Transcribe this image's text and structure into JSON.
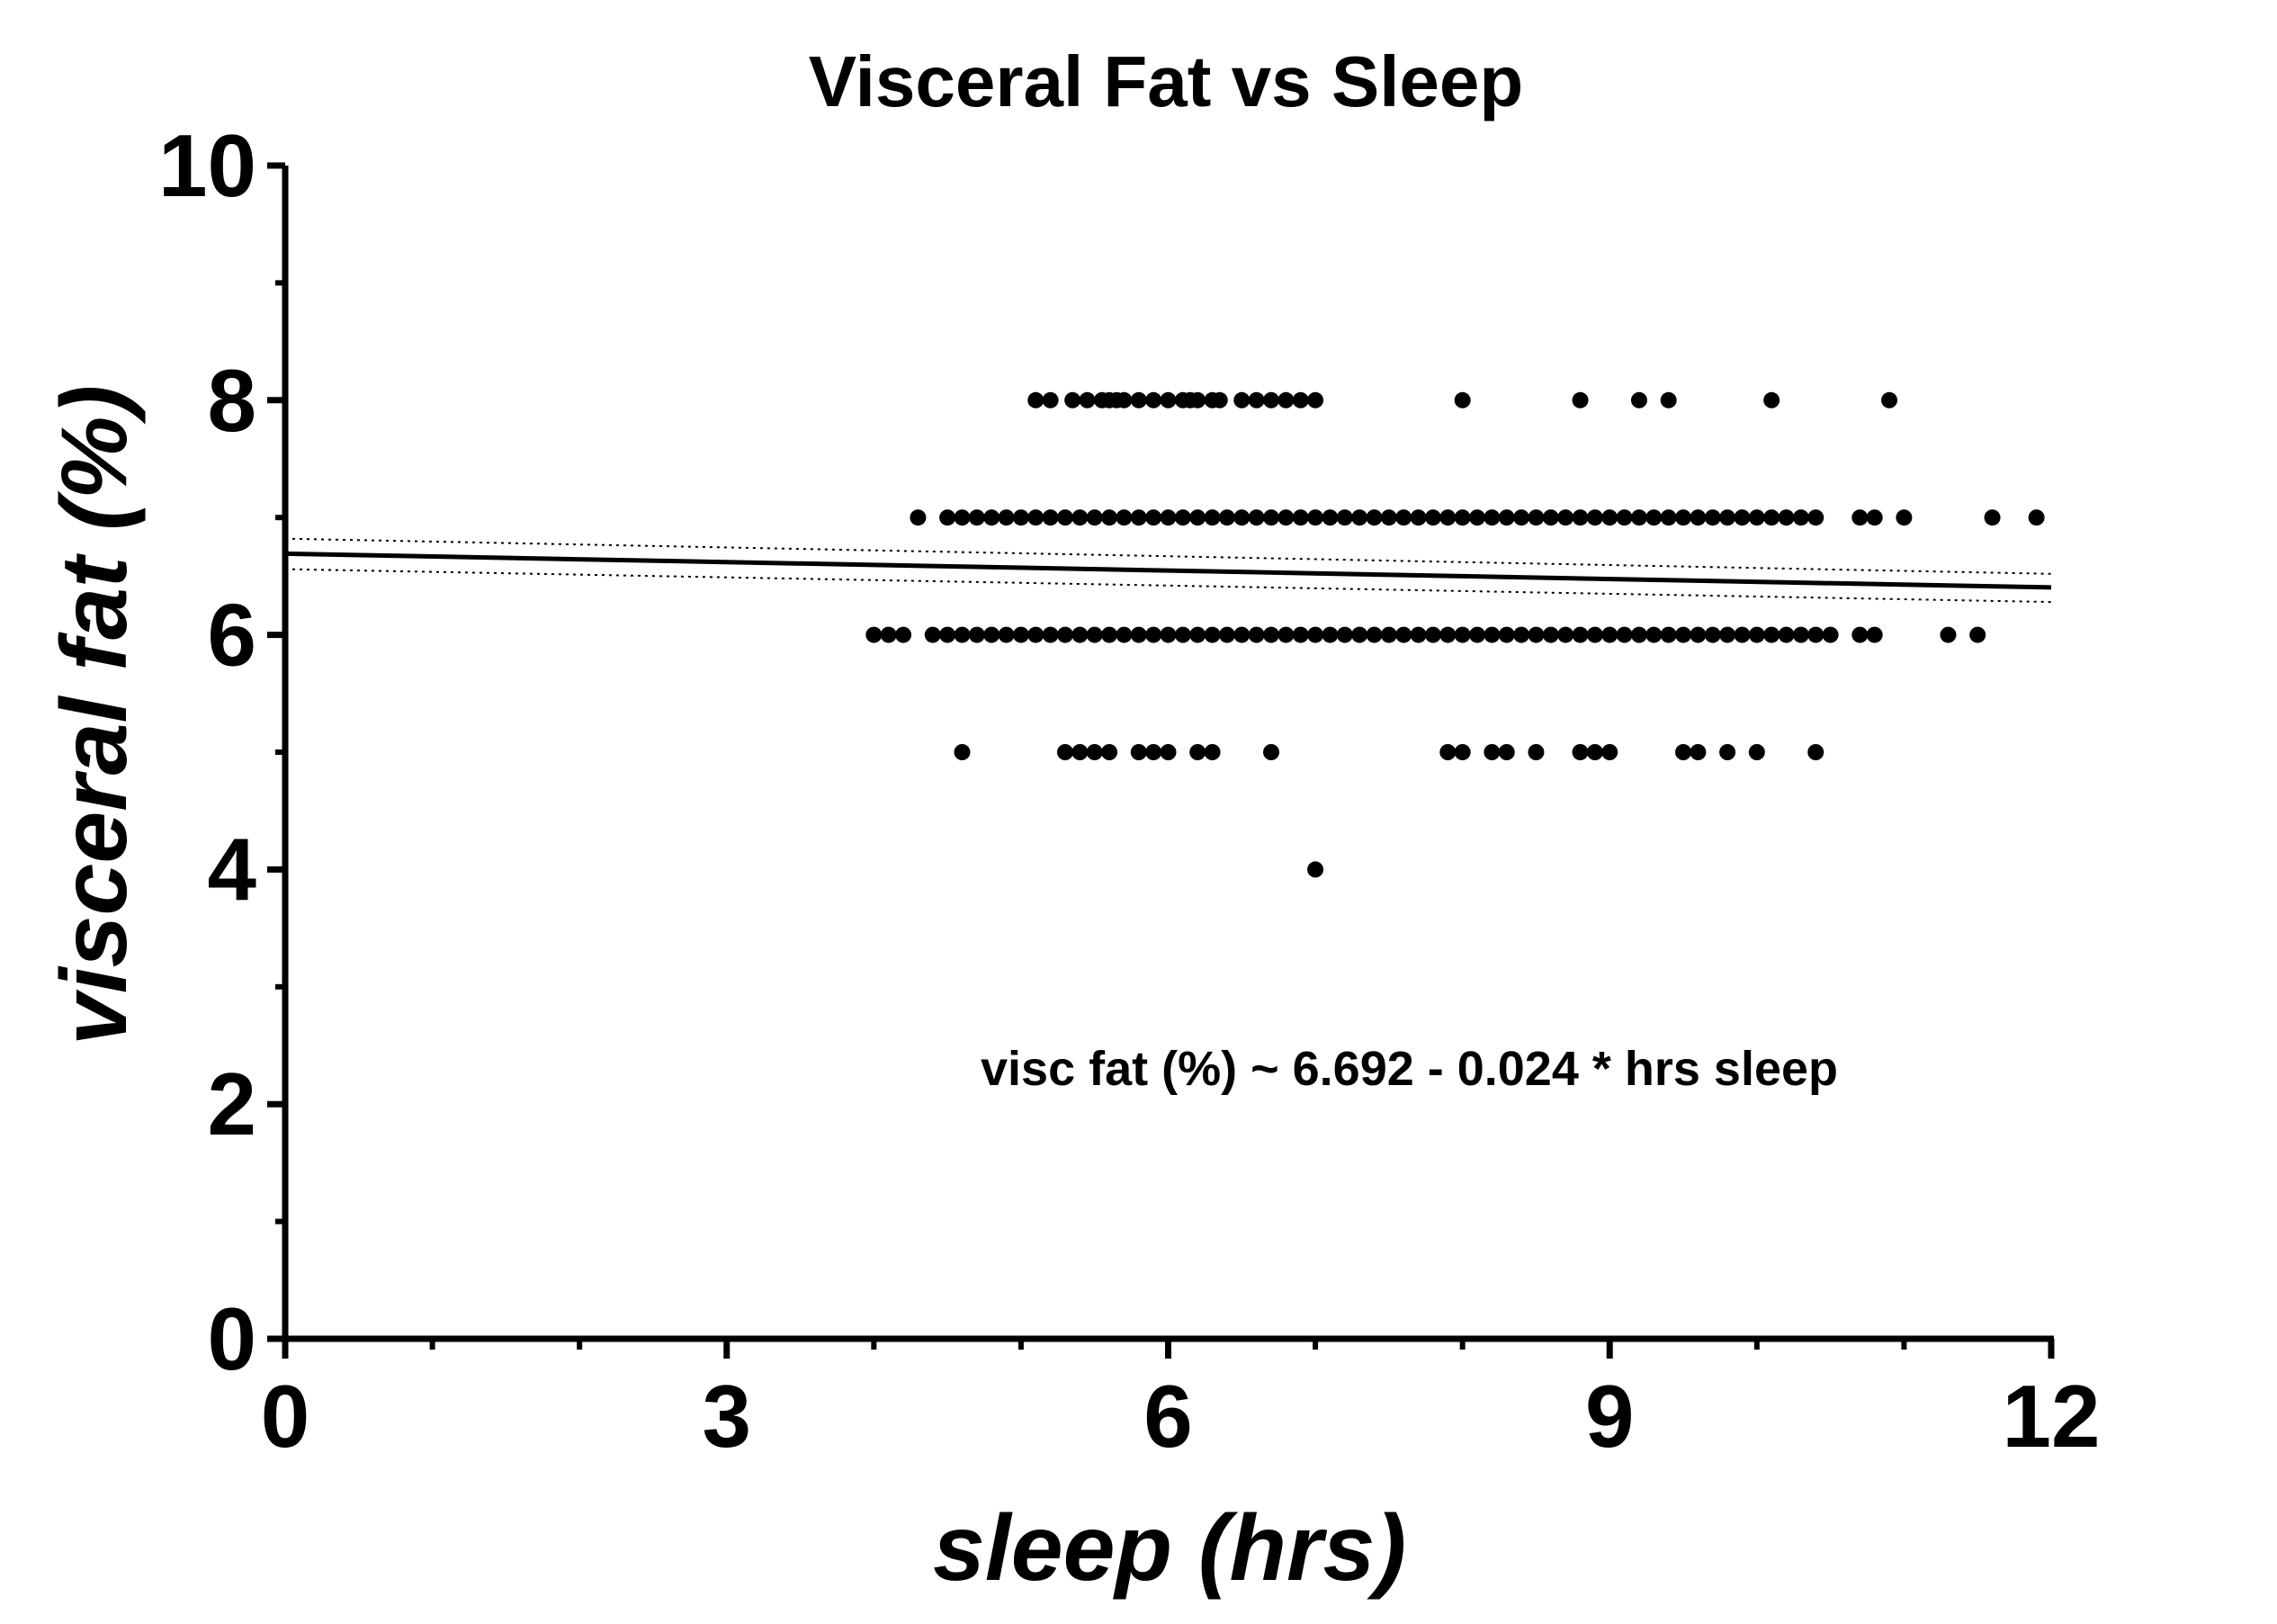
{
  "chart_data": {
    "type": "scatter",
    "title": "Visceral Fat vs Sleep",
    "xlabel": "sleep (hrs)",
    "ylabel": "visceral fat (%)",
    "xlim": [
      0,
      12
    ],
    "ylim": [
      0,
      10
    ],
    "x_ticks": [
      "0",
      "3",
      "6",
      "9",
      "12"
    ],
    "y_ticks": [
      "0",
      "2",
      "4",
      "6",
      "8",
      "10"
    ],
    "grid": false,
    "legend": "none",
    "annotation": "visc fat (%) ~ 6.692 - 0.024 * hrs sleep",
    "regression": {
      "intercept": 6.692,
      "slope": -0.024,
      "x_range": [
        0,
        12
      ]
    },
    "confidence_band": {
      "upper": [
        [
          0,
          6.82
        ],
        [
          12,
          6.52
        ]
      ],
      "lower": [
        [
          0,
          6.56
        ],
        [
          12,
          6.28
        ]
      ]
    },
    "series": [
      {
        "y": 8,
        "x": [
          5.1,
          5.2,
          5.35,
          5.45,
          5.55,
          5.6,
          5.65,
          5.7,
          5.8,
          5.9,
          6.0,
          6.1,
          6.15,
          6.2,
          6.3,
          6.35,
          6.5,
          6.6,
          6.7,
          6.8,
          6.9,
          7.0,
          8.0,
          8.8,
          9.2,
          9.4,
          10.1,
          10.9
        ]
      },
      {
        "y": 7,
        "x": [
          4.3,
          4.5,
          4.6,
          4.7,
          4.8,
          4.9,
          5.0,
          5.1,
          5.2,
          5.3,
          5.4,
          5.5,
          5.6,
          5.7,
          5.8,
          5.9,
          6.0,
          6.1,
          6.2,
          6.3,
          6.4,
          6.5,
          6.6,
          6.7,
          6.8,
          6.9,
          7.0,
          7.1,
          7.2,
          7.3,
          7.4,
          7.5,
          7.6,
          7.7,
          7.8,
          7.9,
          8.0,
          8.1,
          8.2,
          8.3,
          8.4,
          8.5,
          8.6,
          8.7,
          8.8,
          8.9,
          9.0,
          9.1,
          9.2,
          9.3,
          9.4,
          9.5,
          9.6,
          9.7,
          9.8,
          9.9,
          10.0,
          10.1,
          10.2,
          10.3,
          10.4,
          10.7,
          10.8,
          11.0,
          11.6,
          11.9
        ]
      },
      {
        "y": 6,
        "x": [
          4.0,
          4.1,
          4.2,
          4.4,
          4.5,
          4.6,
          4.7,
          4.8,
          4.9,
          5.0,
          5.1,
          5.2,
          5.3,
          5.4,
          5.5,
          5.6,
          5.7,
          5.8,
          5.9,
          6.0,
          6.1,
          6.2,
          6.3,
          6.4,
          6.5,
          6.6,
          6.7,
          6.8,
          6.9,
          7.0,
          7.1,
          7.2,
          7.3,
          7.4,
          7.5,
          7.6,
          7.7,
          7.8,
          7.9,
          8.0,
          8.1,
          8.2,
          8.3,
          8.4,
          8.5,
          8.6,
          8.7,
          8.8,
          8.9,
          9.0,
          9.1,
          9.2,
          9.3,
          9.4,
          9.5,
          9.6,
          9.7,
          9.8,
          9.9,
          10.0,
          10.1,
          10.2,
          10.3,
          10.4,
          10.5,
          10.7,
          10.8,
          11.3,
          11.5
        ]
      },
      {
        "y": 5,
        "x": [
          4.6,
          5.3,
          5.4,
          5.5,
          5.6,
          5.8,
          5.9,
          6.0,
          6.2,
          6.3,
          6.7,
          7.9,
          8.0,
          8.2,
          8.3,
          8.5,
          8.8,
          8.9,
          9.0,
          9.5,
          9.6,
          9.8,
          10.0,
          10.4
        ]
      },
      {
        "y": 4,
        "x": [
          7.0
        ]
      }
    ]
  }
}
